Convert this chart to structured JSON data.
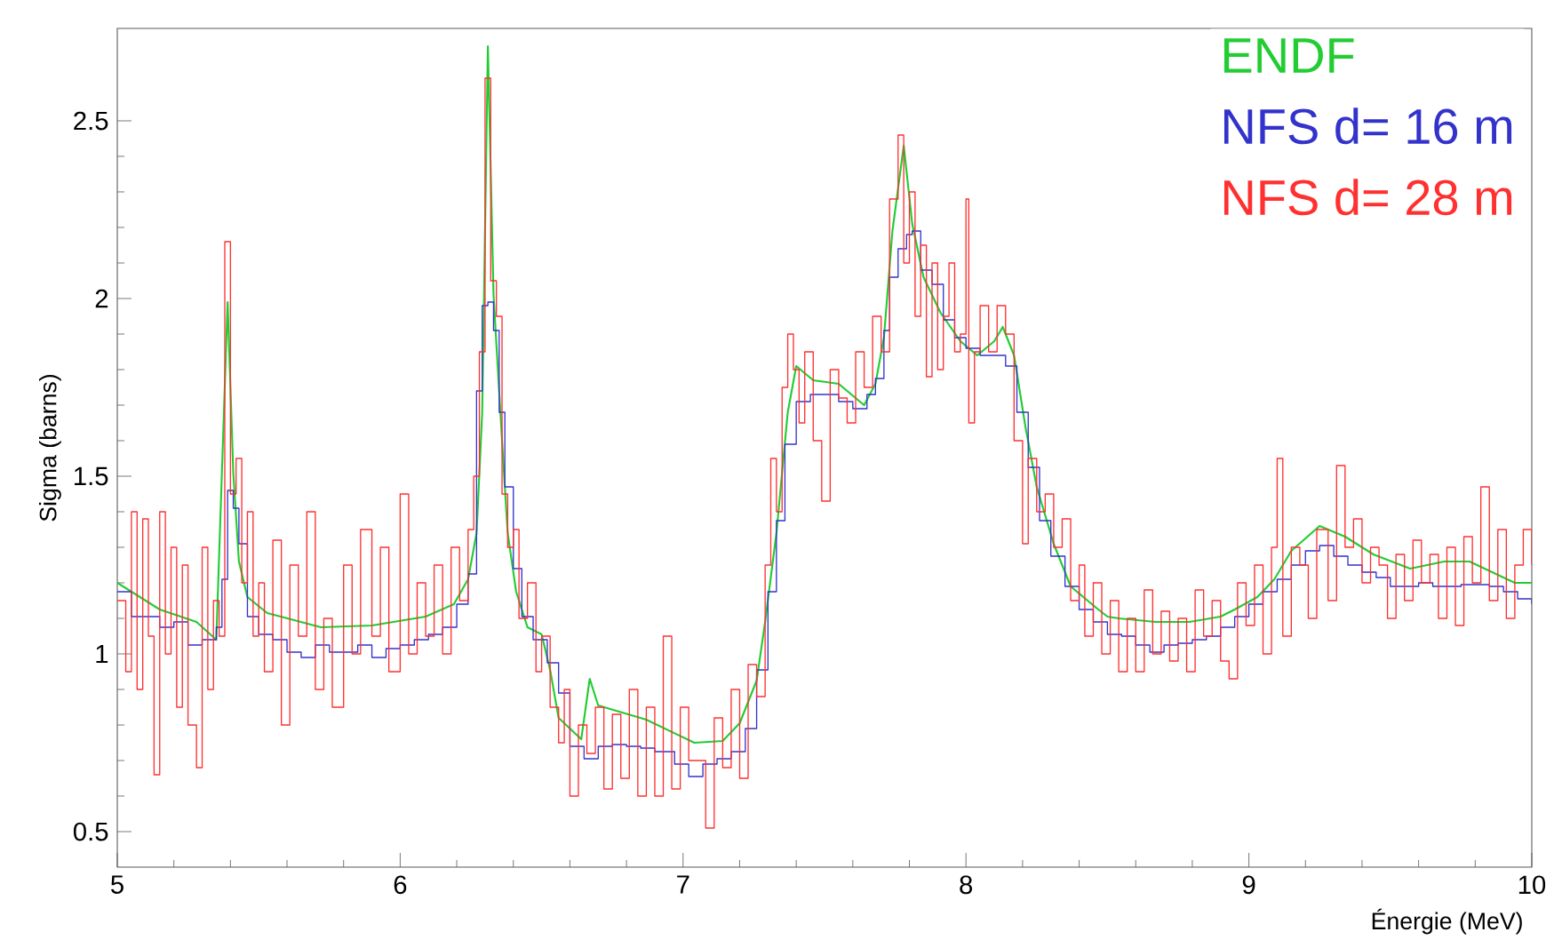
{
  "chart_data": {
    "type": "line",
    "xlabel": "Énergie (MeV)",
    "ylabel": "Sigma (barns)",
    "xlim": [
      5,
      10
    ],
    "ylim": [
      0.4,
      2.76
    ],
    "xticks": [
      5,
      6,
      7,
      8,
      9,
      10
    ],
    "yticks": [
      0.5,
      1,
      1.5,
      2,
      2.5
    ],
    "legend": "top right",
    "series": [
      {
        "name": "ENDF",
        "color": "#22cc33",
        "x": [
          5.0,
          5.15,
          5.28,
          5.35,
          5.39,
          5.41,
          5.43,
          5.46,
          5.53,
          5.72,
          5.9,
          6.09,
          6.19,
          6.24,
          6.27,
          6.29,
          6.31,
          6.33,
          6.36,
          6.38,
          6.41,
          6.45,
          6.5,
          6.53,
          6.56,
          6.64,
          6.67,
          6.7,
          6.87,
          7.04,
          7.14,
          7.2,
          7.26,
          7.29,
          7.33,
          7.37,
          7.4,
          7.46,
          7.55,
          7.64,
          7.68,
          7.71,
          7.74,
          7.78,
          7.81,
          7.85,
          7.91,
          7.98,
          8.04,
          8.1,
          8.13,
          8.17,
          8.21,
          8.25,
          8.31,
          8.37,
          8.46,
          8.5,
          8.54,
          8.67,
          8.79,
          8.9,
          8.95,
          9.03,
          9.09,
          9.15,
          9.25,
          9.34,
          9.44,
          9.57,
          9.69,
          9.78,
          9.86,
          9.94,
          10.0
        ],
        "values": [
          1.2,
          1.125,
          1.09,
          1.04,
          1.99,
          1.51,
          1.26,
          1.16,
          1.115,
          1.075,
          1.08,
          1.105,
          1.14,
          1.21,
          1.34,
          1.68,
          2.71,
          2.01,
          1.6,
          1.34,
          1.175,
          1.075,
          1.055,
          0.955,
          0.82,
          0.76,
          0.93,
          0.855,
          0.815,
          0.75,
          0.755,
          0.805,
          0.925,
          1.09,
          1.34,
          1.68,
          1.81,
          1.77,
          1.76,
          1.7,
          1.76,
          1.89,
          2.19,
          2.43,
          2.21,
          2.06,
          1.96,
          1.88,
          1.84,
          1.88,
          1.92,
          1.84,
          1.64,
          1.47,
          1.31,
          1.19,
          1.13,
          1.105,
          1.1,
          1.09,
          1.09,
          1.105,
          1.125,
          1.16,
          1.21,
          1.29,
          1.36,
          1.33,
          1.28,
          1.24,
          1.26,
          1.26,
          1.23,
          1.2,
          1.2
        ]
      },
      {
        "name": "NFS d= 16 m",
        "type": "step",
        "color": "#3333cc",
        "x": [
          5.0,
          5.05,
          5.1,
          5.15,
          5.2,
          5.25,
          5.3,
          5.35,
          5.37,
          5.39,
          5.41,
          5.43,
          5.46,
          5.5,
          5.55,
          5.6,
          5.65,
          5.7,
          5.75,
          5.8,
          5.85,
          5.9,
          5.95,
          6.0,
          6.05,
          6.1,
          6.15,
          6.2,
          6.24,
          6.27,
          6.29,
          6.31,
          6.33,
          6.35,
          6.37,
          6.4,
          6.43,
          6.47,
          6.52,
          6.56,
          6.6,
          6.65,
          6.7,
          6.75,
          6.8,
          6.85,
          6.9,
          6.97,
          7.02,
          7.07,
          7.12,
          7.17,
          7.22,
          7.26,
          7.3,
          7.33,
          7.36,
          7.4,
          7.45,
          7.5,
          7.55,
          7.6,
          7.65,
          7.68,
          7.71,
          7.73,
          7.76,
          7.79,
          7.81,
          7.84,
          7.88,
          7.92,
          7.96,
          8.0,
          8.05,
          8.1,
          8.14,
          8.18,
          8.22,
          8.26,
          8.3,
          8.35,
          8.4,
          8.45,
          8.5,
          8.55,
          8.6,
          8.65,
          8.7,
          8.75,
          8.8,
          8.85,
          8.9,
          8.95,
          9.0,
          9.05,
          9.1,
          9.15,
          9.2,
          9.25,
          9.3,
          9.35,
          9.4,
          9.45,
          9.5,
          9.55,
          9.6,
          9.65,
          9.7,
          9.75,
          9.8,
          9.85,
          9.9,
          9.95,
          10.0
        ],
        "values": [
          1.175,
          1.105,
          1.105,
          1.075,
          1.09,
          1.025,
          1.04,
          1.075,
          1.21,
          1.46,
          1.41,
          1.31,
          1.105,
          1.055,
          1.04,
          1.005,
          0.99,
          1.025,
          1.005,
          1.005,
          1.025,
          0.99,
          1.015,
          1.025,
          1.04,
          1.055,
          1.075,
          1.14,
          1.225,
          1.74,
          1.98,
          1.99,
          1.91,
          1.68,
          1.47,
          1.24,
          1.105,
          1.04,
          0.975,
          0.89,
          0.74,
          0.705,
          0.74,
          0.745,
          0.74,
          0.735,
          0.725,
          0.69,
          0.655,
          0.69,
          0.705,
          0.725,
          0.79,
          0.955,
          1.175,
          1.375,
          1.59,
          1.71,
          1.73,
          1.73,
          1.71,
          1.69,
          1.73,
          1.775,
          1.91,
          2.06,
          2.14,
          2.18,
          2.19,
          2.08,
          2.04,
          1.94,
          1.89,
          1.86,
          1.84,
          1.84,
          1.81,
          1.68,
          1.525,
          1.375,
          1.275,
          1.19,
          1.125,
          1.09,
          1.055,
          1.05,
          1.025,
          1.005,
          1.025,
          1.03,
          1.04,
          1.05,
          1.075,
          1.105,
          1.14,
          1.175,
          1.21,
          1.25,
          1.29,
          1.305,
          1.275,
          1.25,
          1.23,
          1.215,
          1.19,
          1.19,
          1.2,
          1.19,
          1.19,
          1.195,
          1.195,
          1.19,
          1.175,
          1.155,
          1.14
        ]
      },
      {
        "name": "NFS d= 28 m",
        "type": "step",
        "color": "#ff3030",
        "x": [
          5.0,
          5.03,
          5.05,
          5.07,
          5.09,
          5.11,
          5.13,
          5.15,
          5.17,
          5.19,
          5.21,
          5.23,
          5.25,
          5.28,
          5.3,
          5.32,
          5.34,
          5.36,
          5.38,
          5.4,
          5.42,
          5.44,
          5.46,
          5.48,
          5.5,
          5.52,
          5.55,
          5.58,
          5.61,
          5.64,
          5.67,
          5.7,
          5.73,
          5.76,
          5.8,
          5.83,
          5.86,
          5.9,
          5.93,
          5.96,
          6.0,
          6.03,
          6.06,
          6.09,
          6.12,
          6.15,
          6.18,
          6.21,
          6.24,
          6.26,
          6.28,
          6.3,
          6.32,
          6.34,
          6.36,
          6.38,
          6.4,
          6.42,
          6.45,
          6.48,
          6.5,
          6.53,
          6.56,
          6.58,
          6.6,
          6.63,
          6.66,
          6.69,
          6.72,
          6.75,
          6.78,
          6.81,
          6.84,
          6.87,
          6.9,
          6.93,
          6.96,
          6.99,
          7.02,
          7.05,
          7.08,
          7.11,
          7.14,
          7.17,
          7.2,
          7.23,
          7.26,
          7.29,
          7.31,
          7.33,
          7.35,
          7.37,
          7.39,
          7.41,
          7.43,
          7.46,
          7.49,
          7.52,
          7.55,
          7.58,
          7.61,
          7.64,
          7.67,
          7.7,
          7.73,
          7.76,
          7.78,
          7.8,
          7.82,
          7.84,
          7.86,
          7.88,
          7.9,
          7.92,
          7.94,
          7.96,
          7.98,
          8.0,
          8.01,
          8.03,
          8.05,
          8.08,
          8.11,
          8.14,
          8.17,
          8.2,
          8.22,
          8.25,
          8.28,
          8.31,
          8.34,
          8.37,
          8.4,
          8.42,
          8.45,
          8.48,
          8.51,
          8.54,
          8.57,
          8.6,
          8.63,
          8.66,
          8.69,
          8.72,
          8.75,
          8.78,
          8.81,
          8.84,
          8.87,
          8.9,
          8.93,
          8.96,
          8.99,
          9.02,
          9.05,
          9.08,
          9.1,
          9.12,
          9.15,
          9.18,
          9.21,
          9.24,
          9.28,
          9.31,
          9.34,
          9.37,
          9.4,
          9.43,
          9.46,
          9.49,
          9.52,
          9.55,
          9.58,
          9.61,
          9.64,
          9.67,
          9.7,
          9.73,
          9.76,
          9.79,
          9.82,
          9.85,
          9.88,
          9.91,
          9.94,
          9.97,
          10.0
        ],
        "values": [
          1.15,
          0.95,
          1.4,
          0.9,
          1.38,
          1.05,
          0.66,
          1.4,
          1.0,
          1.3,
          0.85,
          1.25,
          0.8,
          0.68,
          1.3,
          0.9,
          1.15,
          1.05,
          2.16,
          1.45,
          1.55,
          1.2,
          1.4,
          1.05,
          1.2,
          0.95,
          1.32,
          0.8,
          1.25,
          1.05,
          1.4,
          0.9,
          1.1,
          0.85,
          1.25,
          1.0,
          1.35,
          1.05,
          1.3,
          0.95,
          1.45,
          1.0,
          1.2,
          1.05,
          1.25,
          1.0,
          1.3,
          1.15,
          1.35,
          1.5,
          1.85,
          2.62,
          2.05,
          1.95,
          1.45,
          1.3,
          1.35,
          1.1,
          1.2,
          0.95,
          1.05,
          0.85,
          0.75,
          0.9,
          0.6,
          0.8,
          0.72,
          0.85,
          0.62,
          0.83,
          0.65,
          0.9,
          0.6,
          0.85,
          0.6,
          1.05,
          0.62,
          0.85,
          0.7,
          0.7,
          0.51,
          0.82,
          0.68,
          0.9,
          0.65,
          0.97,
          0.88,
          1.25,
          1.55,
          1.4,
          1.75,
          1.9,
          1.8,
          1.65,
          1.85,
          1.6,
          1.43,
          1.8,
          1.72,
          1.65,
          1.85,
          1.75,
          1.95,
          1.85,
          2.28,
          2.46,
          2.1,
          2.3,
          1.95,
          2.15,
          1.78,
          2.1,
          1.8,
          1.95,
          2.1,
          1.85,
          1.9,
          2.28,
          1.65,
          1.85,
          1.98,
          1.85,
          1.98,
          1.9,
          1.6,
          1.31,
          1.55,
          1.4,
          1.45,
          1.3,
          1.38,
          1.15,
          1.25,
          1.05,
          1.2,
          1.0,
          1.15,
          0.95,
          1.1,
          0.95,
          1.18,
          1.0,
          1.12,
          0.98,
          1.1,
          0.95,
          1.18,
          1.05,
          1.15,
          0.98,
          0.93,
          1.2,
          1.08,
          1.25,
          1.0,
          1.3,
          1.55,
          1.05,
          1.3,
          1.25,
          1.1,
          1.35,
          1.15,
          1.53,
          1.3,
          1.38,
          1.2,
          1.3,
          1.25,
          1.1,
          1.28,
          1.15,
          1.32,
          1.2,
          1.28,
          1.1,
          1.3,
          1.08,
          1.33,
          1.2,
          1.47,
          1.15,
          1.35,
          1.1,
          1.25,
          1.35,
          1.25
        ]
      }
    ]
  }
}
